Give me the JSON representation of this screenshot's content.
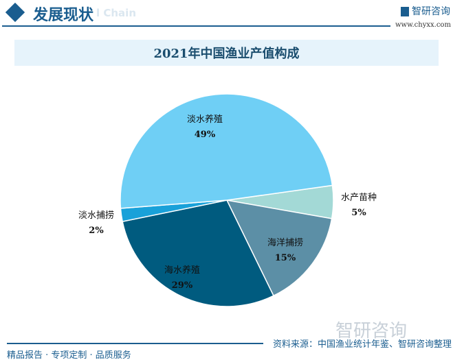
{
  "header": {
    "title": "发展现状",
    "ghost_text": "l Chain",
    "logo_text": "智研咨询",
    "url": "www.chyxx.com"
  },
  "footer": {
    "slogan": "精品报告 · 专项定制 · 品质服务",
    "source": "资料来源：中国渔业统计年鉴、智研咨询整理",
    "watermark": "智研咨询"
  },
  "chart_data": {
    "type": "pie",
    "title": "2021年中国渔业产值构成",
    "slices": [
      {
        "name": "水产苗种",
        "value": 5,
        "label": "5%",
        "color": "#a3d9d6"
      },
      {
        "name": "海洋捕捞",
        "value": 15,
        "label": "15%",
        "color": "#5c8fa6"
      },
      {
        "name": "海水养殖",
        "value": 29,
        "label": "29%",
        "color": "#005b7f"
      },
      {
        "name": "淡水捕捞",
        "value": 2,
        "label": "2%",
        "color": "#19a1d9"
      },
      {
        "name": "淡水养殖",
        "value": 49,
        "label": "49%",
        "color": "#6fcff5"
      }
    ],
    "start_angle_deg": -8
  }
}
